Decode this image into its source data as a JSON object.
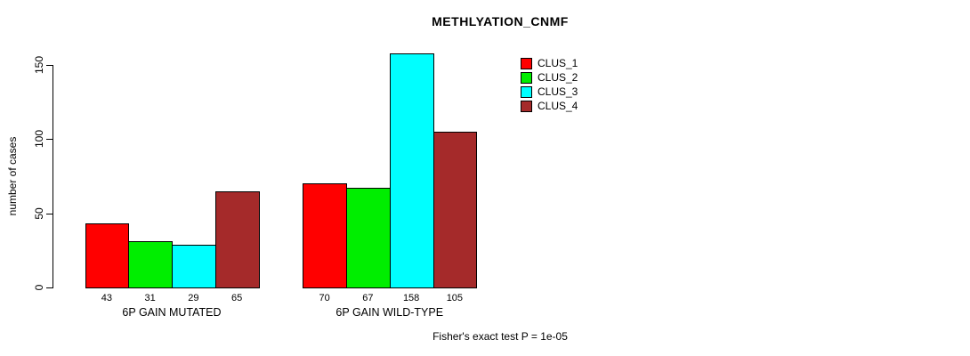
{
  "chart_data": {
    "type": "bar",
    "title": "METHLYATION_CNMF",
    "ylabel": "number of cases",
    "xlabel": "",
    "categories": [
      "6P GAIN MUTATED",
      "6P GAIN WILD-TYPE"
    ],
    "series": [
      {
        "name": "CLUS_1",
        "color": "#FF0000",
        "values": [
          43,
          70
        ]
      },
      {
        "name": "CLUS_2",
        "color": "#00EE00",
        "values": [
          31,
          67
        ]
      },
      {
        "name": "CLUS_3",
        "color": "#00FFFF",
        "values": [
          29,
          158
        ]
      },
      {
        "name": "CLUS_4",
        "color": "#A52A2A",
        "values": [
          65,
          105
        ]
      }
    ],
    "yticks": [
      0,
      50,
      100,
      150
    ],
    "ylim": [
      0,
      150
    ],
    "grid": false,
    "legend_position": "top-right",
    "bar_border_color": "#000000",
    "annotation": "Fisher's exact test P = 1e-05"
  }
}
